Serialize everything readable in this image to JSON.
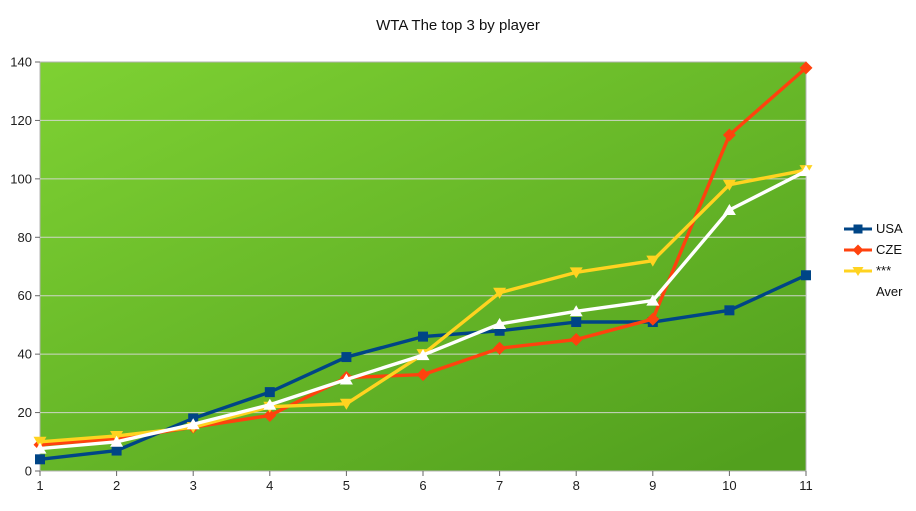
{
  "title": "WTA The top 3 by player",
  "chart_data": {
    "type": "line",
    "title": "WTA The top 3 by player",
    "x": [
      1,
      2,
      3,
      4,
      5,
      6,
      7,
      8,
      9,
      10,
      11
    ],
    "series": [
      {
        "name": "USA",
        "color": "#004586",
        "marker": "square",
        "values": [
          4,
          7,
          18,
          27,
          39,
          46,
          48,
          51,
          51,
          55,
          67
        ]
      },
      {
        "name": "CZE",
        "color": "#FF420E",
        "marker": "diamond",
        "values": [
          9,
          11,
          15,
          19,
          32,
          33,
          42,
          45,
          52,
          115,
          138
        ]
      },
      {
        "name": "***",
        "color": "#FFD320",
        "marker": "triangle-down",
        "values": [
          10,
          12,
          15,
          22,
          23,
          40,
          61,
          68,
          72,
          98,
          103
        ]
      },
      {
        "name": "Aver",
        "color": "#FFFFFF",
        "marker": "triangle-up",
        "values": [
          7.67,
          10,
          16,
          22.67,
          31.33,
          39.67,
          50.33,
          54.67,
          58.33,
          89.33,
          102.67
        ]
      }
    ],
    "xlabel": "",
    "ylabel": "",
    "ylim": [
      0,
      140
    ],
    "ytick_step": 20,
    "y_ticks": [
      0,
      20,
      40,
      60,
      80,
      100,
      120,
      140
    ],
    "x_ticks": [
      1,
      2,
      3,
      4,
      5,
      6,
      7,
      8,
      9,
      10,
      11
    ],
    "grid": true,
    "legend_position": "right",
    "plot_background": {
      "type": "gradient",
      "from": "#7ED133",
      "to": "#52A01E"
    },
    "gridline_color": "#D9D9D9",
    "border_color": "#B3B3B3",
    "tick_color": "#666666",
    "label_color": "#1D1D1D"
  },
  "legend": {
    "items": [
      {
        "label": "USA"
      },
      {
        "label": "CZE"
      },
      {
        "label": "***"
      },
      {
        "label": "Aver"
      }
    ]
  }
}
